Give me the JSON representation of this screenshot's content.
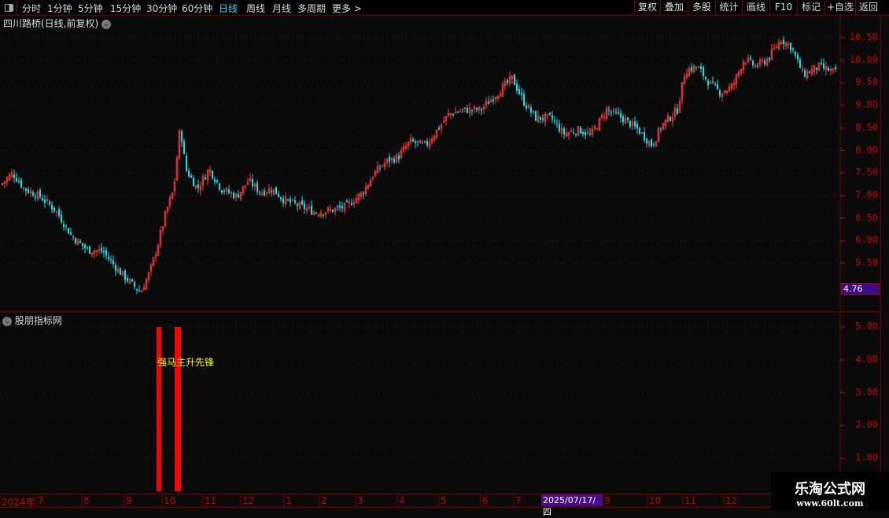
{
  "toolbar": {
    "periods": [
      "分时",
      "1分钟",
      "5分钟",
      "15分钟",
      "30分钟",
      "60分钟",
      "日线",
      "周线",
      "月线",
      "多周期",
      "更多 >"
    ],
    "active_period": "日线",
    "actions": [
      "复权",
      "叠加",
      "多股",
      "统计",
      "画线",
      "F10",
      "标记",
      "+自选",
      "返回"
    ]
  },
  "main": {
    "title": "四川路桥(日线,前复权)",
    "current_price_label": "4.76"
  },
  "sub": {
    "title": "股朋指标网",
    "signal_labels": [
      "强马",
      "主升先锋"
    ]
  },
  "time_axis": {
    "ticks": [
      "2024年",
      "7",
      "8",
      "9",
      "10",
      "11",
      "12",
      "1",
      "2",
      "3",
      "4",
      "5",
      "6",
      "7",
      "9",
      "10",
      "11",
      "12"
    ],
    "cursor_date": "2025/07/17/四"
  },
  "watermark": {
    "line1": "乐淘公式网",
    "line2": "www.60lt.com"
  },
  "colors": {
    "up": "#ff3b3b",
    "down": "#00e5ee",
    "signal_bar": "#ff0000",
    "signal_text": "#ffff00",
    "axis": "#c00000",
    "grid_border": "#7a0000"
  },
  "chart_data": [
    {
      "type": "candlestick",
      "ylim": [
        4.76,
        10.65
      ],
      "y_ticks": [
        "10.50",
        "10.00",
        "9.50",
        "9.00",
        "8.50",
        "8.00",
        "7.50",
        "7.00",
        "6.50",
        "6.00",
        "5.50"
      ],
      "approx_close_trend": [
        7.24,
        7.5,
        7.15,
        6.98,
        6.67,
        6.1,
        5.8,
        5.76,
        5.33,
        4.98,
        4.86,
        5.33,
        5.94,
        6.63,
        7.15,
        8.55,
        7.59,
        7.15,
        7.59,
        7.15,
        6.98,
        7.33,
        7.07,
        7.15,
        6.9,
        6.77,
        6.63,
        6.67,
        6.77,
        7.07,
        7.5,
        7.76,
        7.85,
        8.2,
        8.11,
        8.46,
        8.81,
        8.9,
        8.9,
        9.25,
        9.6,
        9.07,
        8.72,
        8.72,
        8.37,
        8.46,
        8.34,
        8.9,
        8.72,
        8.46,
        8.11,
        8.55,
        8.9,
        9.77,
        9.86,
        9.51,
        9.28,
        9.42,
        10.03,
        9.86,
        10.03,
        10.47,
        10.29,
        9.68,
        9.86,
        9.73
      ],
      "low": 4.76,
      "high": 10.65
    },
    {
      "type": "bar",
      "name": "股朋指标网",
      "ylim": [
        0,
        5.4
      ],
      "y_ticks": [
        "5.00",
        "4.00",
        "3.00",
        "2.00",
        "1.00"
      ],
      "signals": [
        {
          "date_month": "10",
          "value": 5
        },
        {
          "date_month": "10",
          "value": 5
        }
      ]
    }
  ]
}
